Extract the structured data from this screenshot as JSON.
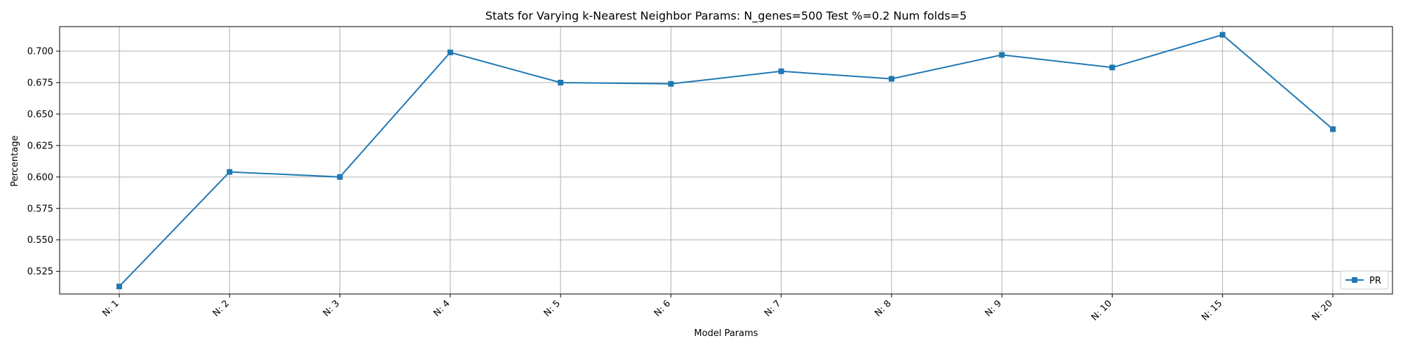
{
  "chart_data": {
    "type": "line",
    "title": "Stats for Varying k-Nearest Neighbor Params: N_genes=500 Test %=0.2 Num folds=5",
    "xlabel": "Model Params",
    "ylabel": "Percentage",
    "categories": [
      "N: 1",
      "N: 2",
      "N: 3",
      "N: 4",
      "N: 5",
      "N: 6",
      "N: 7",
      "N: 8",
      "N: 9",
      "N: 10",
      "N: 15",
      "N: 20"
    ],
    "series": [
      {
        "name": "PR",
        "color": "#1f77b4",
        "marker": "square",
        "values": [
          0.513,
          0.604,
          0.6,
          0.699,
          0.675,
          0.674,
          0.684,
          0.678,
          0.697,
          0.687,
          0.713,
          0.638
        ]
      }
    ],
    "ylim": [
      0.507,
      0.7195
    ],
    "yticks": [
      0.525,
      0.55,
      0.575,
      0.6,
      0.625,
      0.65,
      0.675,
      0.7
    ],
    "ytick_labels": [
      "0.525",
      "0.550",
      "0.575",
      "0.600",
      "0.625",
      "0.650",
      "0.675",
      "0.700"
    ],
    "grid": true,
    "legend_position": "bottom-right"
  }
}
